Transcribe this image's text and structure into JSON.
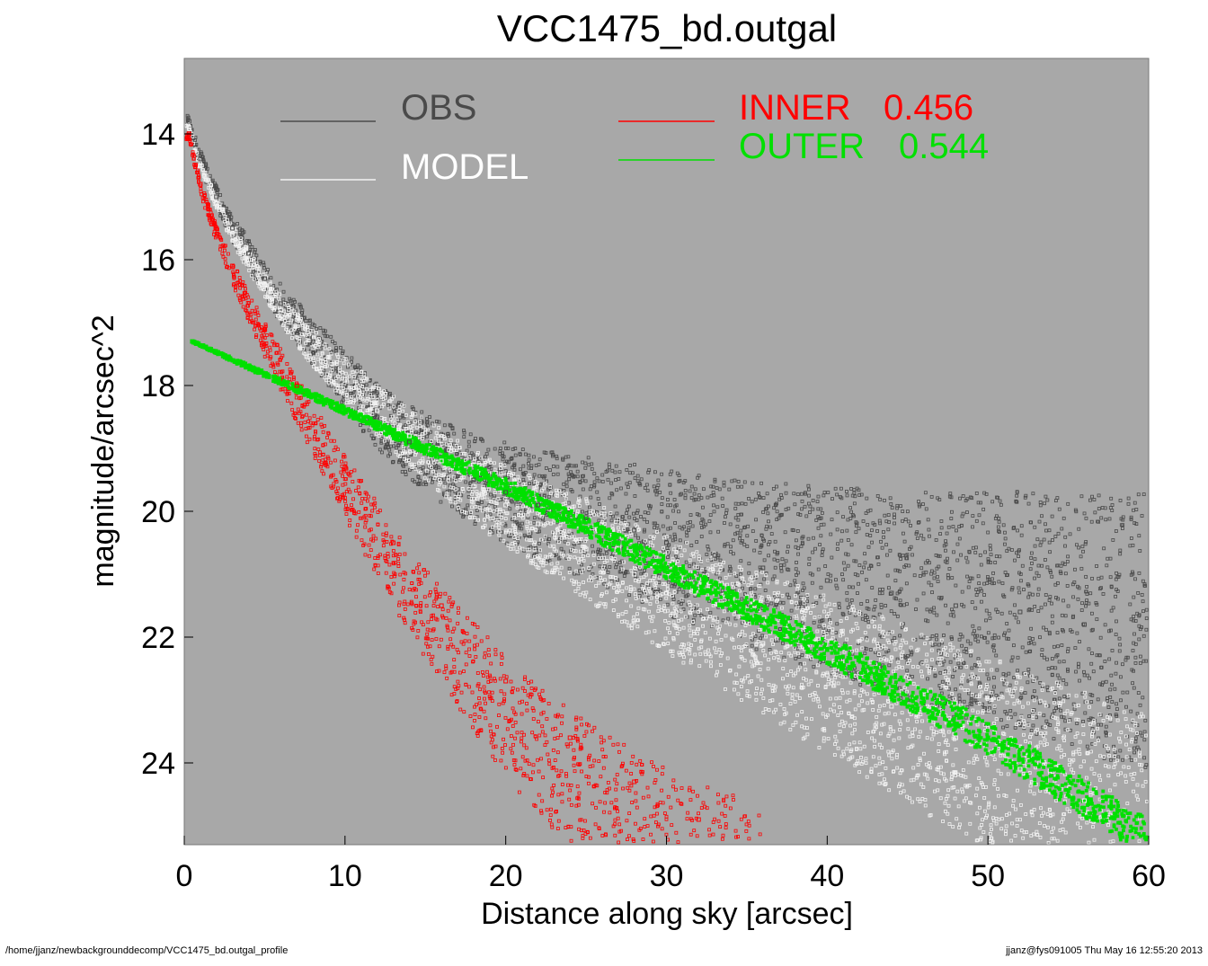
{
  "chart_data": {
    "type": "scatter",
    "title": "VCC1475_bd.outgal",
    "xlabel": "Distance along sky [arcsec]",
    "ylabel": "magnitude/arcsec^2",
    "xlim": [
      0,
      60
    ],
    "ylim": [
      25.3,
      12.8
    ],
    "y_inverted": true,
    "x_ticks": [
      0,
      10,
      20,
      30,
      40,
      50,
      60
    ],
    "y_ticks": [
      14,
      16,
      18,
      20,
      22,
      24
    ],
    "grid": false,
    "legend_placement": "top",
    "background_color": "#a8a8a8",
    "series": [
      {
        "name": "OBS",
        "color": "#4a4a4a",
        "x": [
          0.3,
          1,
          2,
          3,
          4,
          5,
          6,
          8,
          10,
          12,
          14,
          16,
          18,
          20,
          22,
          25,
          28,
          30,
          33,
          36,
          40,
          44,
          48,
          52,
          56,
          60
        ],
        "y": [
          13.8,
          14.4,
          15.0,
          15.5,
          15.9,
          16.3,
          16.7,
          17.3,
          17.9,
          18.5,
          18.9,
          19.2,
          19.5,
          19.7,
          19.9,
          20.1,
          20.3,
          20.5,
          20.7,
          20.9,
          21.1,
          21.3,
          21.5,
          21.6,
          21.8,
          21.9
        ]
      },
      {
        "name": "MODEL",
        "color": "#f2f2f2",
        "x": [
          0.3,
          1,
          2,
          3,
          4,
          5,
          6,
          8,
          10,
          12,
          14,
          16,
          18,
          20,
          22,
          25,
          28,
          30,
          33,
          36,
          40,
          44,
          48,
          52,
          56,
          60
        ],
        "y": [
          13.9,
          14.5,
          15.1,
          15.6,
          16.0,
          16.4,
          16.8,
          17.4,
          17.9,
          18.4,
          18.8,
          19.2,
          19.6,
          19.9,
          20.2,
          20.6,
          21.0,
          21.3,
          21.7,
          22.1,
          22.6,
          23.1,
          23.6,
          24.1,
          24.6,
          25.1
        ]
      }
    ],
    "legend": {
      "obs_label": "OBS",
      "model_label": "MODEL",
      "inner_label": "INNER",
      "inner_value": "0.456",
      "outer_label": "OUTER",
      "outer_value": "0.544",
      "inner_color": "#ff0000",
      "outer_color": "#00e000"
    },
    "inner_component": {
      "name": "INNER",
      "fraction": 0.456,
      "color": "#ff0000",
      "x": [
        0.3,
        1,
        2,
        3,
        5,
        7,
        10,
        13,
        16,
        20,
        24,
        28,
        32,
        36
      ],
      "y": [
        14.0,
        14.8,
        15.5,
        16.1,
        17.1,
        18.0,
        19.3,
        20.5,
        21.5,
        22.7,
        23.6,
        24.3,
        24.9,
        25.3
      ]
    },
    "outer_component": {
      "name": "OUTER",
      "fraction": 0.544,
      "color": "#00e000",
      "x": [
        0.5,
        10,
        20,
        30,
        40,
        50,
        60
      ],
      "y": [
        17.3,
        18.4,
        19.6,
        20.9,
        22.2,
        23.6,
        25.2
      ]
    }
  },
  "footer": {
    "path": "/home/jjanz/newbackgrounddecomp/VCC1475_bd.outgal_profile",
    "stamp": "jjanz@fys091005  Thu May 16 12:55:20 2013"
  }
}
